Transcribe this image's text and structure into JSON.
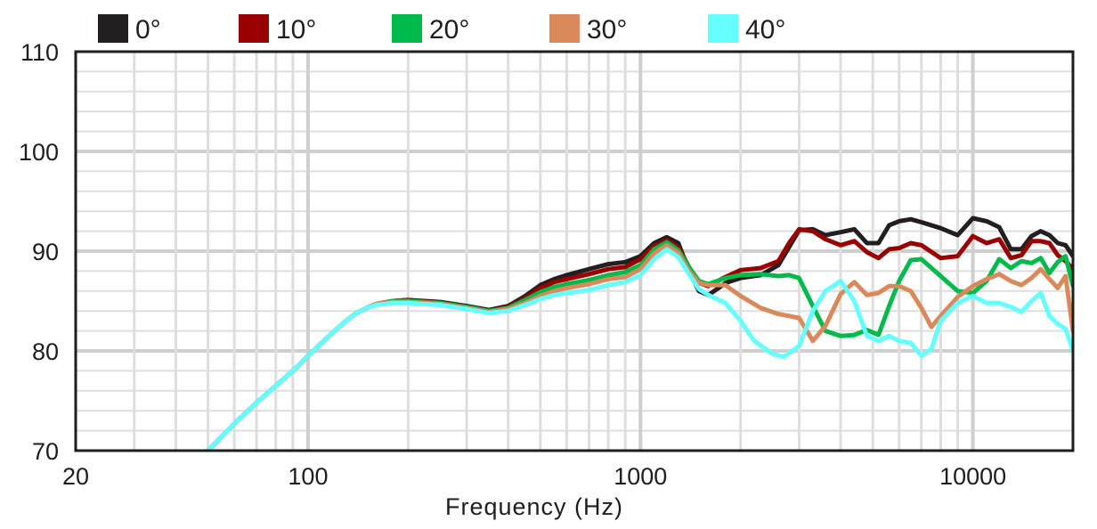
{
  "chart_data": {
    "type": "line",
    "title": "",
    "xlabel": "Frequency (Hz)",
    "ylabel": "",
    "x_scale": "log",
    "xlim": [
      20,
      20000
    ],
    "ylim": [
      70,
      110
    ],
    "grid": true,
    "legend_position": "top",
    "x_ticks": [
      {
        "value": 20,
        "label": "20"
      },
      {
        "value": 100,
        "label": "100"
      },
      {
        "value": 1000,
        "label": "1000"
      },
      {
        "value": 10000,
        "label": "10000"
      }
    ],
    "y_ticks": [
      {
        "value": 70,
        "label": "70"
      },
      {
        "value": 80,
        "label": "80"
      },
      {
        "value": 90,
        "label": "90"
      },
      {
        "value": 100,
        "label": "100"
      },
      {
        "value": 110,
        "label": "110"
      }
    ],
    "series": [
      {
        "name": "0°",
        "color": "#231f20",
        "points": [
          [
            50,
            70
          ],
          [
            60,
            72.7
          ],
          [
            70,
            74.8
          ],
          [
            80,
            76.5
          ],
          [
            90,
            78
          ],
          [
            100,
            79.5
          ],
          [
            110,
            80.8
          ],
          [
            120,
            82
          ],
          [
            130,
            83
          ],
          [
            140,
            83.8
          ],
          [
            150,
            84.3
          ],
          [
            160,
            84.7
          ],
          [
            180,
            85
          ],
          [
            200,
            85.1
          ],
          [
            250,
            84.9
          ],
          [
            300,
            84.5
          ],
          [
            350,
            84.1
          ],
          [
            400,
            84.5
          ],
          [
            450,
            85.5
          ],
          [
            500,
            86.6
          ],
          [
            550,
            87.2
          ],
          [
            600,
            87.6
          ],
          [
            700,
            88.2
          ],
          [
            800,
            88.7
          ],
          [
            900,
            88.9
          ],
          [
            1000,
            89.5
          ],
          [
            1100,
            90.8
          ],
          [
            1200,
            91.4
          ],
          [
            1300,
            90.8
          ],
          [
            1400,
            88
          ],
          [
            1500,
            86
          ],
          [
            1600,
            85.6
          ],
          [
            1700,
            86.2
          ],
          [
            1800,
            86.8
          ],
          [
            2000,
            87.3
          ],
          [
            2300,
            87.6
          ],
          [
            2600,
            88.6
          ],
          [
            2800,
            90.4
          ],
          [
            3000,
            92.1
          ],
          [
            3300,
            92.2
          ],
          [
            3600,
            91.6
          ],
          [
            4000,
            91.9
          ],
          [
            4400,
            92.2
          ],
          [
            4800,
            90.8
          ],
          [
            5200,
            90.8
          ],
          [
            5600,
            92.6
          ],
          [
            6000,
            93
          ],
          [
            6500,
            93.2
          ],
          [
            7000,
            92.9
          ],
          [
            8000,
            92.3
          ],
          [
            9000,
            91.6
          ],
          [
            10000,
            93.3
          ],
          [
            11000,
            93
          ],
          [
            12000,
            92.4
          ],
          [
            13000,
            90.2
          ],
          [
            14000,
            90.2
          ],
          [
            15000,
            91.5
          ],
          [
            16000,
            92
          ],
          [
            17000,
            91.6
          ],
          [
            18000,
            90.8
          ],
          [
            19000,
            90.6
          ],
          [
            20000,
            89.5
          ]
        ]
      },
      {
        "name": "10°",
        "color": "#990000",
        "points": [
          [
            50,
            70
          ],
          [
            60,
            72.7
          ],
          [
            70,
            74.8
          ],
          [
            80,
            76.5
          ],
          [
            90,
            78
          ],
          [
            100,
            79.5
          ],
          [
            110,
            80.8
          ],
          [
            120,
            82
          ],
          [
            130,
            83
          ],
          [
            140,
            83.8
          ],
          [
            150,
            84.3
          ],
          [
            160,
            84.7
          ],
          [
            180,
            85
          ],
          [
            200,
            85.1
          ],
          [
            250,
            84.8
          ],
          [
            300,
            84.4
          ],
          [
            350,
            84
          ],
          [
            400,
            84.4
          ],
          [
            450,
            85.3
          ],
          [
            500,
            86.3
          ],
          [
            550,
            86.9
          ],
          [
            600,
            87.2
          ],
          [
            700,
            87.7
          ],
          [
            800,
            88.2
          ],
          [
            900,
            88.4
          ],
          [
            1000,
            89.2
          ],
          [
            1100,
            90.5
          ],
          [
            1200,
            91.1
          ],
          [
            1300,
            90.4
          ],
          [
            1400,
            88.4
          ],
          [
            1500,
            86.8
          ],
          [
            1600,
            86.5
          ],
          [
            1800,
            87.4
          ],
          [
            2000,
            88.1
          ],
          [
            2300,
            88.3
          ],
          [
            2600,
            89
          ],
          [
            2800,
            90.8
          ],
          [
            3000,
            92.2
          ],
          [
            3300,
            92
          ],
          [
            3600,
            91.2
          ],
          [
            4000,
            90.6
          ],
          [
            4400,
            91
          ],
          [
            4800,
            89.9
          ],
          [
            5200,
            89.3
          ],
          [
            5600,
            90.2
          ],
          [
            6000,
            90.3
          ],
          [
            6500,
            90.8
          ],
          [
            7000,
            90.6
          ],
          [
            8000,
            89.3
          ],
          [
            9000,
            89.5
          ],
          [
            10000,
            91.5
          ],
          [
            11000,
            90.8
          ],
          [
            12000,
            91.2
          ],
          [
            13000,
            89.3
          ],
          [
            14000,
            89.6
          ],
          [
            15000,
            91
          ],
          [
            16000,
            91
          ],
          [
            17000,
            90.8
          ],
          [
            18000,
            89.6
          ],
          [
            19000,
            89
          ],
          [
            20000,
            88.2
          ]
        ]
      },
      {
        "name": "20°",
        "color": "#00bb4c",
        "points": [
          [
            50,
            70
          ],
          [
            60,
            72.7
          ],
          [
            70,
            74.8
          ],
          [
            80,
            76.5
          ],
          [
            90,
            78
          ],
          [
            100,
            79.5
          ],
          [
            110,
            80.8
          ],
          [
            120,
            82
          ],
          [
            130,
            83
          ],
          [
            140,
            83.8
          ],
          [
            150,
            84.3
          ],
          [
            160,
            84.7
          ],
          [
            180,
            85
          ],
          [
            200,
            85
          ],
          [
            250,
            84.8
          ],
          [
            300,
            84.4
          ],
          [
            350,
            84
          ],
          [
            400,
            84.3
          ],
          [
            450,
            85.1
          ],
          [
            500,
            85.9
          ],
          [
            550,
            86.4
          ],
          [
            600,
            86.7
          ],
          [
            700,
            87.1
          ],
          [
            800,
            87.6
          ],
          [
            900,
            87.9
          ],
          [
            1000,
            88.6
          ],
          [
            1100,
            90.2
          ],
          [
            1200,
            90.9
          ],
          [
            1300,
            90.1
          ],
          [
            1400,
            88.4
          ],
          [
            1500,
            87
          ],
          [
            1600,
            86.7
          ],
          [
            1800,
            87.3
          ],
          [
            2000,
            87.6
          ],
          [
            2300,
            87.7
          ],
          [
            2600,
            87.5
          ],
          [
            2800,
            87.6
          ],
          [
            3000,
            87.3
          ],
          [
            3300,
            84.5
          ],
          [
            3600,
            82
          ],
          [
            4000,
            81.5
          ],
          [
            4400,
            81.6
          ],
          [
            4800,
            82.1
          ],
          [
            5200,
            81.6
          ],
          [
            5600,
            84.5
          ],
          [
            6000,
            87
          ],
          [
            6500,
            89.1
          ],
          [
            7000,
            89.2
          ],
          [
            8000,
            87.5
          ],
          [
            9000,
            86
          ],
          [
            10000,
            85.8
          ],
          [
            11000,
            87
          ],
          [
            12000,
            89.2
          ],
          [
            13000,
            88.3
          ],
          [
            14000,
            89
          ],
          [
            15000,
            88.8
          ],
          [
            16000,
            89.3
          ],
          [
            17000,
            87.8
          ],
          [
            18000,
            88.9
          ],
          [
            19000,
            89.5
          ],
          [
            20000,
            86.5
          ]
        ]
      },
      {
        "name": "30°",
        "color": "#d9895a",
        "points": [
          [
            50,
            70
          ],
          [
            60,
            72.7
          ],
          [
            70,
            74.8
          ],
          [
            80,
            76.5
          ],
          [
            90,
            78
          ],
          [
            100,
            79.5
          ],
          [
            110,
            80.8
          ],
          [
            120,
            82
          ],
          [
            130,
            83
          ],
          [
            140,
            83.8
          ],
          [
            150,
            84.3
          ],
          [
            160,
            84.7
          ],
          [
            180,
            84.9
          ],
          [
            200,
            84.9
          ],
          [
            250,
            84.7
          ],
          [
            300,
            84.3
          ],
          [
            350,
            83.9
          ],
          [
            400,
            84.2
          ],
          [
            450,
            84.8
          ],
          [
            500,
            85.5
          ],
          [
            550,
            86
          ],
          [
            600,
            86.3
          ],
          [
            700,
            86.7
          ],
          [
            800,
            87.2
          ],
          [
            900,
            87.4
          ],
          [
            1000,
            88.2
          ],
          [
            1100,
            89.8
          ],
          [
            1200,
            90.6
          ],
          [
            1300,
            89.8
          ],
          [
            1400,
            88
          ],
          [
            1500,
            86.8
          ],
          [
            1600,
            86.6
          ],
          [
            1800,
            86.6
          ],
          [
            2000,
            85.5
          ],
          [
            2300,
            84.3
          ],
          [
            2600,
            83.7
          ],
          [
            3000,
            83.3
          ],
          [
            3300,
            81
          ],
          [
            3600,
            82.5
          ],
          [
            4000,
            85.7
          ],
          [
            4400,
            86.9
          ],
          [
            4800,
            85.6
          ],
          [
            5200,
            85.8
          ],
          [
            5600,
            86.5
          ],
          [
            6000,
            86.5
          ],
          [
            6500,
            86
          ],
          [
            7000,
            84.3
          ],
          [
            7500,
            82.4
          ],
          [
            8000,
            83.5
          ],
          [
            9000,
            85.4
          ],
          [
            10000,
            86.5
          ],
          [
            11000,
            87.2
          ],
          [
            12000,
            87.7
          ],
          [
            13000,
            87
          ],
          [
            14000,
            86.6
          ],
          [
            15000,
            87.3
          ],
          [
            16000,
            88.2
          ],
          [
            17000,
            87.2
          ],
          [
            18000,
            86.3
          ],
          [
            19000,
            87.5
          ],
          [
            20000,
            82
          ]
        ]
      },
      {
        "name": "40°",
        "color": "#66ffff",
        "points": [
          [
            50,
            70
          ],
          [
            60,
            72.7
          ],
          [
            70,
            74.8
          ],
          [
            80,
            76.5
          ],
          [
            90,
            78
          ],
          [
            100,
            79.5
          ],
          [
            110,
            80.8
          ],
          [
            120,
            82
          ],
          [
            130,
            83
          ],
          [
            140,
            83.8
          ],
          [
            150,
            84.3
          ],
          [
            160,
            84.6
          ],
          [
            180,
            84.8
          ],
          [
            200,
            84.8
          ],
          [
            250,
            84.6
          ],
          [
            300,
            84.2
          ],
          [
            350,
            83.8
          ],
          [
            400,
            84
          ],
          [
            450,
            84.6
          ],
          [
            500,
            85.2
          ],
          [
            550,
            85.6
          ],
          [
            600,
            85.8
          ],
          [
            700,
            86.1
          ],
          [
            800,
            86.6
          ],
          [
            900,
            86.9
          ],
          [
            1000,
            87.6
          ],
          [
            1100,
            89.2
          ],
          [
            1200,
            90.2
          ],
          [
            1300,
            89.4
          ],
          [
            1400,
            87.7
          ],
          [
            1500,
            86.2
          ],
          [
            1600,
            85.6
          ],
          [
            1800,
            84.8
          ],
          [
            2000,
            83
          ],
          [
            2200,
            81
          ],
          [
            2500,
            79.7
          ],
          [
            2700,
            79.4
          ],
          [
            3000,
            80.5
          ],
          [
            3300,
            84
          ],
          [
            3600,
            86
          ],
          [
            4000,
            87
          ],
          [
            4400,
            85
          ],
          [
            4800,
            81.5
          ],
          [
            5200,
            81
          ],
          [
            5600,
            81.5
          ],
          [
            6000,
            81
          ],
          [
            6500,
            80.8
          ],
          [
            7000,
            79.5
          ],
          [
            7500,
            80.2
          ],
          [
            8000,
            83
          ],
          [
            9000,
            84.8
          ],
          [
            10000,
            85.5
          ],
          [
            11000,
            84.8
          ],
          [
            12000,
            84.8
          ],
          [
            13000,
            84.4
          ],
          [
            14000,
            83.9
          ],
          [
            15000,
            85
          ],
          [
            16000,
            85.8
          ],
          [
            17000,
            83.5
          ],
          [
            18000,
            82.7
          ],
          [
            19000,
            82.2
          ],
          [
            20000,
            80
          ]
        ]
      }
    ]
  }
}
